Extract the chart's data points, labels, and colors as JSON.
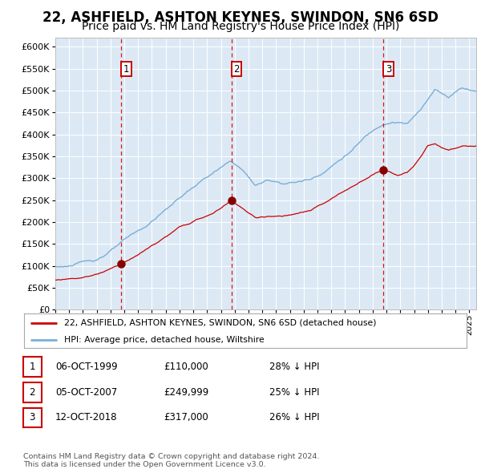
{
  "title": "22, ASHFIELD, ASHTON KEYNES, SWINDON, SN6 6SD",
  "subtitle": "Price paid vs. HM Land Registry's House Price Index (HPI)",
  "title_fontsize": 12,
  "subtitle_fontsize": 10,
  "fig_bg_color": "#ffffff",
  "plot_bg_color": "#dce9f5",
  "hpi_color": "#7aaed6",
  "price_color": "#cc0000",
  "sale_marker_color": "#880000",
  "vline_color": "#dd0000",
  "ylim": [
    0,
    620000
  ],
  "yticks": [
    0,
    50000,
    100000,
    150000,
    200000,
    250000,
    300000,
    350000,
    400000,
    450000,
    500000,
    550000,
    600000
  ],
  "sales": [
    {
      "date_num": 1999.77,
      "price": 110000,
      "label": "1"
    },
    {
      "date_num": 2007.76,
      "price": 249999,
      "label": "2"
    },
    {
      "date_num": 2018.78,
      "price": 317000,
      "label": "3"
    }
  ],
  "legend_entries": [
    {
      "label": "22, ASHFIELD, ASHTON KEYNES, SWINDON, SN6 6SD (detached house)",
      "color": "#cc0000"
    },
    {
      "label": "HPI: Average price, detached house, Wiltshire",
      "color": "#7aaed6"
    }
  ],
  "table_rows": [
    {
      "num": "1",
      "date": "06-OCT-1999",
      "price": "£110,000",
      "pct": "28% ↓ HPI"
    },
    {
      "num": "2",
      "date": "05-OCT-2007",
      "price": "£249,999",
      "pct": "25% ↓ HPI"
    },
    {
      "num": "3",
      "date": "12-OCT-2018",
      "price": "£317,000",
      "pct": "26% ↓ HPI"
    }
  ],
  "footer": "Contains HM Land Registry data © Crown copyright and database right 2024.\nThis data is licensed under the Open Government Licence v3.0.",
  "xmin": 1995.0,
  "xmax": 2025.5
}
